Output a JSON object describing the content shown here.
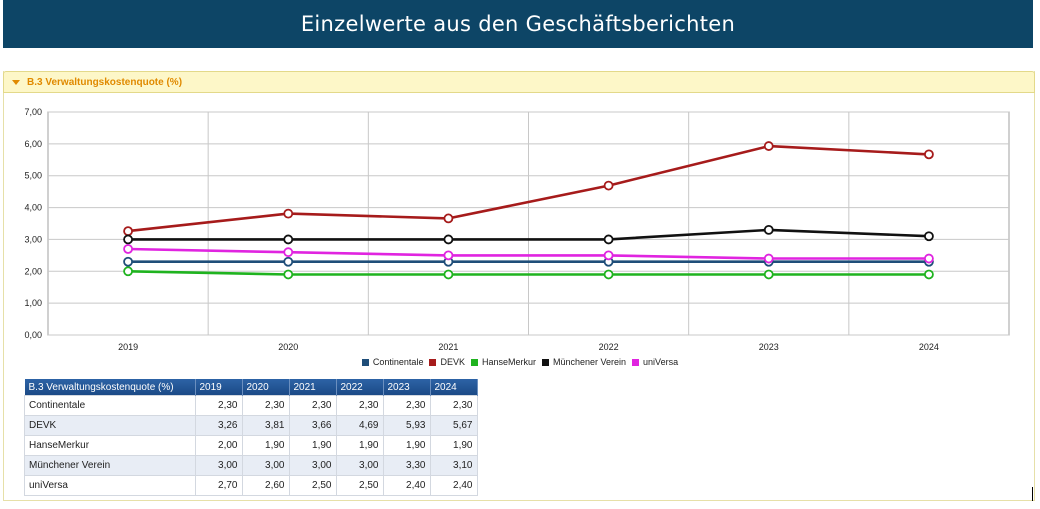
{
  "page": {
    "title": "Einzelwerte aus den Geschäftsberichten"
  },
  "panel": {
    "title": "B.3 Verwaltungskostenquote (%)"
  },
  "chart_data": {
    "type": "line",
    "x": [
      "2019",
      "2020",
      "2021",
      "2022",
      "2023",
      "2024"
    ],
    "ylim": [
      0,
      7
    ],
    "yticks": [
      "0,00",
      "1,00",
      "2,00",
      "3,00",
      "4,00",
      "5,00",
      "6,00",
      "7,00"
    ],
    "grid": true,
    "legend_position": "bottom",
    "series": [
      {
        "name": "Continentale",
        "color": "#1f4e79",
        "values": [
          2.3,
          2.3,
          2.3,
          2.3,
          2.3,
          2.3
        ]
      },
      {
        "name": "DEVK",
        "color": "#a61b1b",
        "values": [
          3.26,
          3.81,
          3.66,
          4.69,
          5.93,
          5.67
        ]
      },
      {
        "name": "HanseMerkur",
        "color": "#1fb31f",
        "values": [
          2.0,
          1.9,
          1.9,
          1.9,
          1.9,
          1.9
        ]
      },
      {
        "name": "Münchener Verein",
        "color": "#111111",
        "values": [
          3.0,
          3.0,
          3.0,
          3.0,
          3.3,
          3.1
        ]
      },
      {
        "name": "uniVersa",
        "color": "#e024e0",
        "values": [
          2.7,
          2.6,
          2.5,
          2.5,
          2.4,
          2.4
        ]
      }
    ]
  },
  "table": {
    "header": [
      "B.3 Verwaltungskostenquote (%)",
      "2019",
      "2020",
      "2021",
      "2022",
      "2023",
      "2024"
    ],
    "rows": [
      {
        "label": "Continentale",
        "values": [
          "2,30",
          "2,30",
          "2,30",
          "2,30",
          "2,30",
          "2,30"
        ]
      },
      {
        "label": "DEVK",
        "values": [
          "3,26",
          "3,81",
          "3,66",
          "4,69",
          "5,93",
          "5,67"
        ]
      },
      {
        "label": "HanseMerkur",
        "values": [
          "2,00",
          "1,90",
          "1,90",
          "1,90",
          "1,90",
          "1,90"
        ]
      },
      {
        "label": "Münchener Verein",
        "values": [
          "3,00",
          "3,00",
          "3,00",
          "3,00",
          "3,30",
          "3,10"
        ]
      },
      {
        "label": "uniVersa",
        "values": [
          "2,70",
          "2,60",
          "2,50",
          "2,50",
          "2,40",
          "2,40"
        ]
      }
    ]
  }
}
